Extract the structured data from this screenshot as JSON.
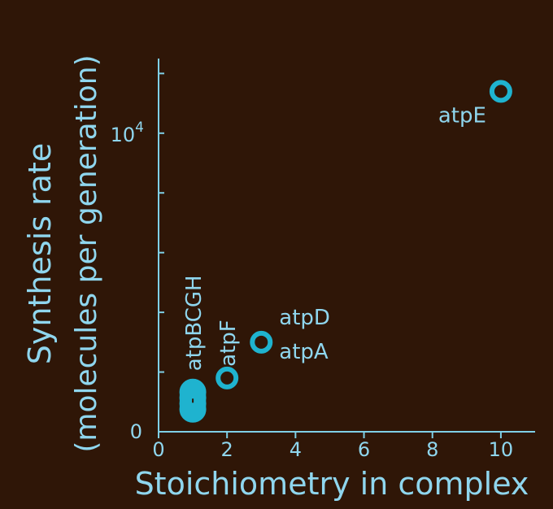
{
  "colors": {
    "background": "#2f1607",
    "accent": "#1fb3cf",
    "axis": "#7fcfe6",
    "text": "#8fd6ee"
  },
  "chart_data": {
    "type": "scatter",
    "title": "",
    "xlabel": "Stoichiometry in complex",
    "ylabel_line1": "Synthesis rate",
    "ylabel_line2": "(molecules per generation)",
    "xlim": [
      0,
      11
    ],
    "ylim": [
      0,
      12500
    ],
    "x_ticks": [
      0,
      2,
      4,
      6,
      8,
      10
    ],
    "x_tick_labels": [
      "0",
      "2",
      "4",
      "6",
      "8",
      "10"
    ],
    "y_ticks": [
      0,
      2000,
      4000,
      6000,
      8000,
      10000,
      12000
    ],
    "y_tick_label_zero": "0",
    "y_tick_label_base": "10",
    "y_tick_label_exp": "4",
    "grid": false,
    "points": [
      {
        "label": "atpE",
        "x": 10,
        "y": 11400
      },
      {
        "label": "atpD",
        "x": 3,
        "y": 3000
      },
      {
        "label": "atpA",
        "x": 3,
        "y": 3000
      },
      {
        "label": "atpF",
        "x": 2,
        "y": 1800
      },
      {
        "label": "atpBCGH",
        "x": 1,
        "y": 1000,
        "count": 4
      }
    ]
  }
}
